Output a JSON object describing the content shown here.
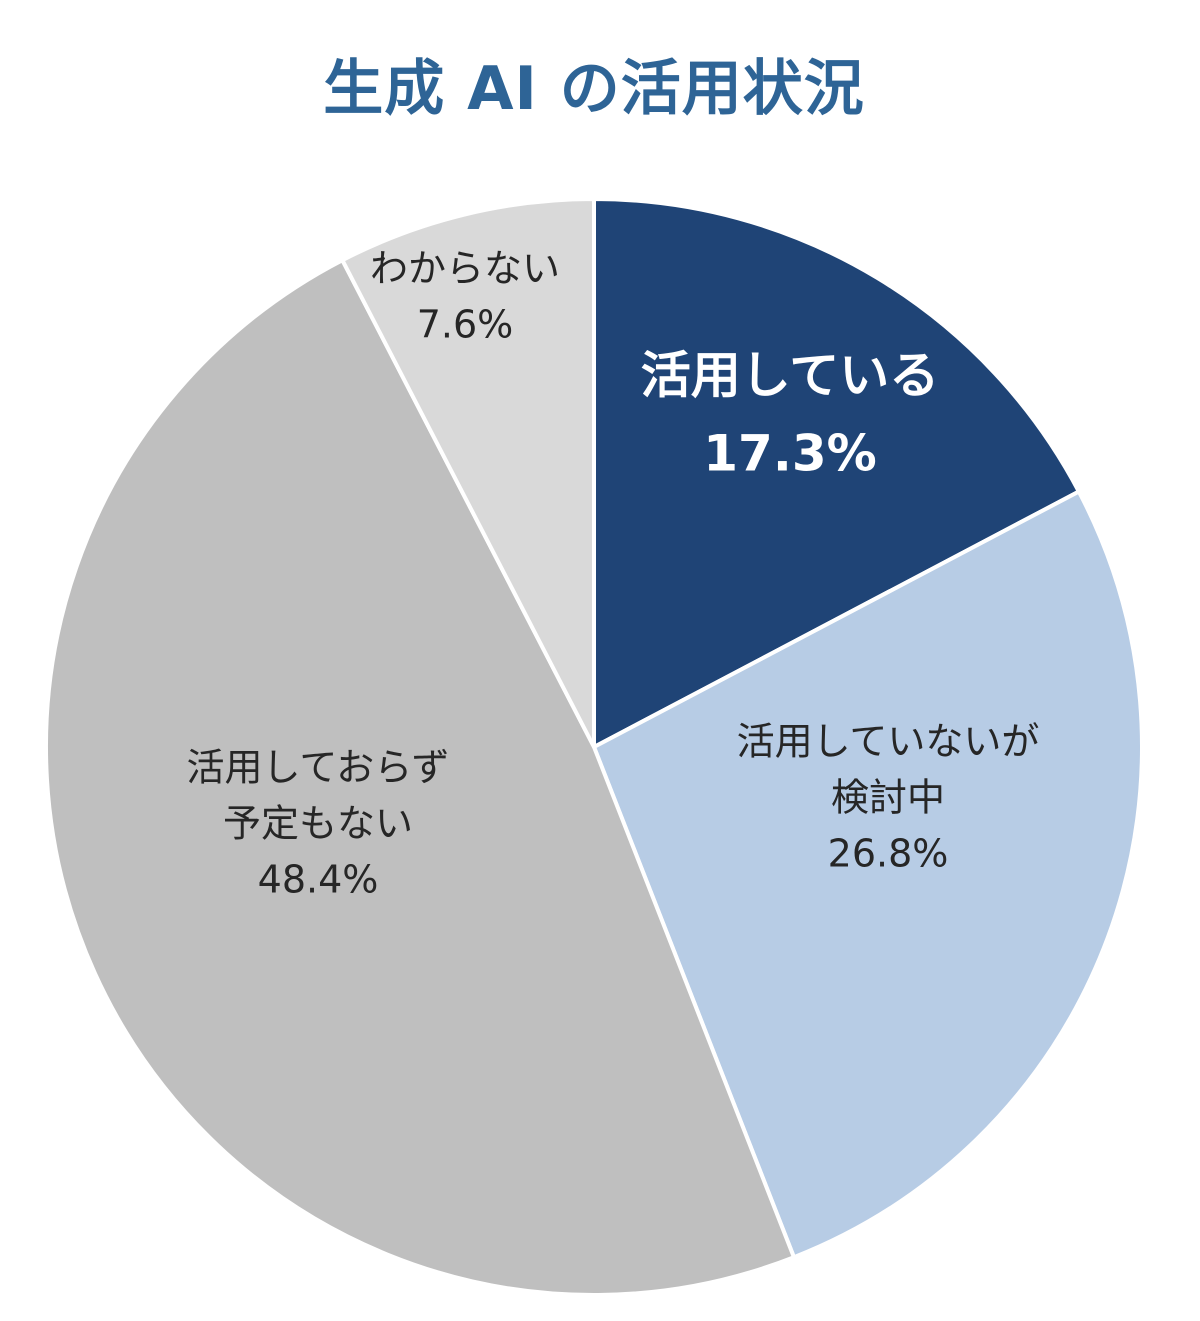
{
  "chart_data": {
    "type": "pie",
    "title": "生成 AI の活用状況",
    "slices": [
      {
        "label_lines": [
          "活用している"
        ],
        "value": 17.3,
        "value_label": "17.3%",
        "color": "#1f4476",
        "text_color": "#ffffff"
      },
      {
        "label_lines": [
          "活用していないが",
          "検討中"
        ],
        "value": 26.8,
        "value_label": "26.8%",
        "color": "#b7cce5",
        "text_color": "#262626"
      },
      {
        "label_lines": [
          "活用しておらず",
          "予定もない"
        ],
        "value": 48.4,
        "value_label": "48.4%",
        "color": "#bfbfbf",
        "text_color": "#262626"
      },
      {
        "label_lines": [
          "わからない"
        ],
        "value": 7.6,
        "value_label": "7.6%",
        "color": "#d9d9d9",
        "text_color": "#262626"
      }
    ],
    "start": "12 o'clock",
    "direction": "clockwise",
    "legend": "none (labels inside slices)"
  }
}
